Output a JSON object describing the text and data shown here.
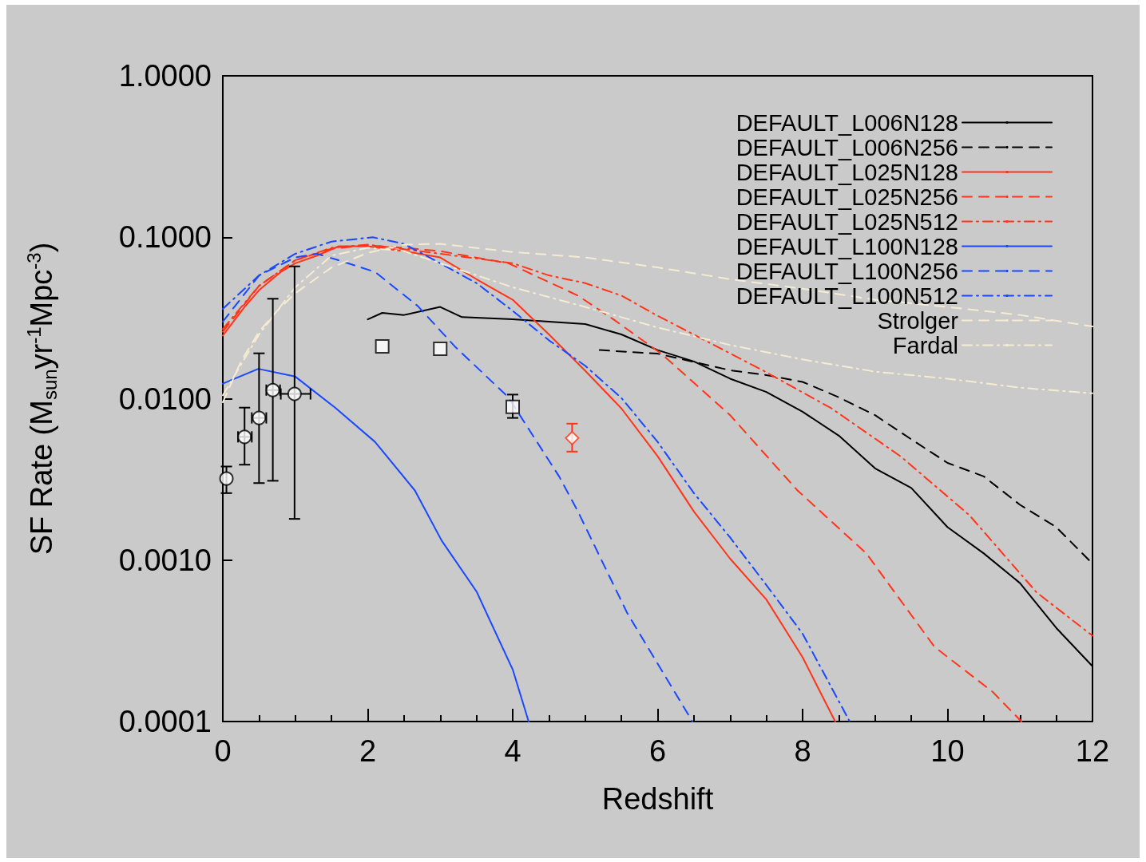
{
  "chart_data": {
    "type": "line",
    "xlabel": "Redshift",
    "ylabel": "SF Rate (M$_{sun}$yr$^{-1}$Mpc$^{-3}$)",
    "log": "y",
    "xlim": [
      0,
      12
    ],
    "ylim": [
      0.0001,
      1
    ],
    "xticks": [
      0,
      2,
      4,
      6,
      8,
      10,
      12
    ],
    "yticks": [
      {
        "value": 0.0001,
        "label": "0.0001"
      },
      {
        "value": 0.001,
        "label": "0.0010"
      },
      {
        "value": 0.01,
        "label": "0.0100"
      },
      {
        "value": 0.1,
        "label": "0.1000"
      },
      {
        "value": 1,
        "label": "1.0000"
      }
    ],
    "grid": false,
    "legend": "top right",
    "marker": "none",
    "series": [
      {
        "name": "DEFAULT_L006N128",
        "color": "#000000",
        "line_style": "solid",
        "x": [
          2.0,
          2.2,
          2.5,
          3.0,
          3.3,
          4.0,
          5.0,
          5.5,
          6.0,
          6.5,
          7.0,
          7.5,
          8.0,
          8.5,
          9.0,
          9.5,
          10.0,
          10.5,
          11.0,
          11.5,
          12.0
        ],
        "values": [
          0.031,
          0.034,
          0.033,
          0.037,
          0.032,
          0.031,
          0.029,
          0.025,
          0.02,
          0.017,
          0.0133,
          0.011,
          0.0083,
          0.0059,
          0.0037,
          0.0028,
          0.0016,
          0.0011,
          0.00072,
          0.00038,
          0.00022
        ]
      },
      {
        "name": "DEFAULT_L006N256",
        "color": "#000000",
        "line_style": "dashed",
        "x": [
          5.2,
          6.0,
          7.0,
          7.5,
          8.0,
          8.5,
          9.0,
          9.5,
          10.0,
          10.5,
          11.0,
          11.5,
          12.0
        ],
        "values": [
          0.02,
          0.019,
          0.015,
          0.014,
          0.0127,
          0.0102,
          0.0079,
          0.0056,
          0.004,
          0.0033,
          0.0022,
          0.0016,
          0.00095
        ]
      },
      {
        "name": "DEFAULT_L025N128",
        "color": "#ff3418",
        "line_style": "solid",
        "x": [
          0,
          0.3,
          0.5,
          0.8,
          1.0,
          1.3,
          1.6,
          2.0,
          2.5,
          3.0,
          3.5,
          4.0,
          4.5,
          5.0,
          5.5,
          6.0,
          6.5,
          7.0,
          7.5,
          8.0,
          8.45
        ],
        "values": [
          0.0246,
          0.037,
          0.047,
          0.061,
          0.069,
          0.077,
          0.088,
          0.088,
          0.082,
          0.075,
          0.055,
          0.041,
          0.025,
          0.0149,
          0.0087,
          0.0044,
          0.002,
          0.00102,
          0.00057,
          0.00025,
          0.0001
        ]
      },
      {
        "name": "DEFAULT_L025N256",
        "color": "#ff3418",
        "line_style": "dashed",
        "x": [
          0,
          0.5,
          1.0,
          1.5,
          2.0,
          2.5,
          3.0,
          3.94,
          4.9,
          5.39,
          6.05,
          7.0,
          7.93,
          8.88,
          9.82,
          10.62,
          11.02
        ],
        "values": [
          0.026,
          0.05,
          0.072,
          0.085,
          0.089,
          0.086,
          0.082,
          0.069,
          0.0435,
          0.031,
          0.019,
          0.0079,
          0.0027,
          0.0011,
          0.00029,
          0.000153,
          0.0001
        ]
      },
      {
        "name": "DEFAULT_L025N512",
        "color": "#ff3418",
        "line_style": "dashdot",
        "x": [
          0,
          0.5,
          1.0,
          1.5,
          2.0,
          3.0,
          4.0,
          4.5,
          5.0,
          5.5,
          6.0,
          7.46,
          8.4,
          9.35,
          10.3,
          11.23,
          12.0
        ],
        "values": [
          0.027,
          0.05,
          0.072,
          0.086,
          0.09,
          0.079,
          0.069,
          0.058,
          0.052,
          0.0435,
          0.0326,
          0.0149,
          0.0087,
          0.0044,
          0.0019,
          0.00063,
          0.00034
        ]
      },
      {
        "name": "DEFAULT_L100N128",
        "color": "#1848ff",
        "line_style": "solid",
        "x": [
          0,
          0.49,
          1.0,
          1.55,
          2.1,
          2.65,
          3.02,
          3.5,
          4.0,
          4.22
        ],
        "values": [
          0.0124,
          0.0153,
          0.0137,
          0.0088,
          0.0054,
          0.0027,
          0.00132,
          0.00064,
          0.00021,
          0.0001
        ]
      },
      {
        "name": "DEFAULT_L100N256",
        "color": "#1848ff",
        "line_style": "dashed",
        "x": [
          0,
          0.5,
          1.0,
          1.3,
          1.6,
          2.1,
          2.69,
          3.2,
          3.94,
          4.64,
          4.9,
          5.58,
          6.48
        ],
        "values": [
          0.03,
          0.058,
          0.075,
          0.079,
          0.072,
          0.061,
          0.0375,
          0.0211,
          0.0102,
          0.0033,
          0.002,
          0.00047,
          0.0001
        ]
      },
      {
        "name": "DEFAULT_L100N512",
        "color": "#1848ff",
        "line_style": "dashdot",
        "x": [
          0,
          0.5,
          1.0,
          1.5,
          2.07,
          2.5,
          3.0,
          3.5,
          4.0,
          4.5,
          5.0,
          5.5,
          6.0,
          6.5,
          7.0,
          7.5,
          8.0,
          8.65
        ],
        "values": [
          0.036,
          0.058,
          0.079,
          0.094,
          0.1,
          0.091,
          0.069,
          0.052,
          0.035,
          0.023,
          0.016,
          0.0101,
          0.0054,
          0.0026,
          0.00138,
          0.0007,
          0.00035,
          0.0001
        ]
      },
      {
        "name": "Strolger",
        "color": "#f5ecd2",
        "line_style": "dashed",
        "x": [
          0,
          0.25,
          0.5,
          0.75,
          1.0,
          1.5,
          2.0,
          2.5,
          3.0,
          4.0,
          5.0,
          6.0,
          7.0,
          8.0,
          9.0,
          10.0,
          11.0,
          12.0
        ],
        "values": [
          0.0095,
          0.017,
          0.026,
          0.035,
          0.045,
          0.065,
          0.08,
          0.09,
          0.091,
          0.081,
          0.075,
          0.065,
          0.055,
          0.048,
          0.041,
          0.037,
          0.033,
          0.028
        ]
      },
      {
        "name": "Fardal",
        "color": "#f5ecd2",
        "line_style": "dashdot",
        "x": [
          0,
          0.27,
          0.5,
          1.0,
          1.5,
          2.0,
          2.5,
          3.0,
          4.0,
          5.0,
          6.0,
          7.0,
          8.0,
          9.0,
          10.0,
          11.0,
          12.0
        ],
        "values": [
          0.0105,
          0.0168,
          0.025,
          0.049,
          0.077,
          0.086,
          0.082,
          0.069,
          0.049,
          0.037,
          0.0276,
          0.0215,
          0.0175,
          0.0147,
          0.0133,
          0.0117,
          0.0108
        ]
      },
      {
        "type": "scatter",
        "color": "#000000",
        "marker": "circle",
        "x": [
          0.05,
          0.3,
          0.5,
          0.69,
          0.99
        ],
        "values": [
          0.0032,
          0.0058,
          0.0076,
          0.0113,
          0.0107
        ],
        "errors": [
          [
            0.0026,
            0.0038
          ],
          [
            0.0039,
            0.0088
          ],
          [
            0.003,
            0.0191
          ],
          [
            0.0031,
            0.0416
          ],
          [
            0.0018,
            0.066
          ]
        ],
        "xerrors": [
          null,
          [
            0.21,
            0.4
          ],
          [
            0.4,
            0.6
          ],
          [
            0.6,
            0.79
          ],
          [
            0.8,
            1.21
          ]
        ]
      },
      {
        "type": "scatter",
        "color": "#000000",
        "marker": "square",
        "x": [
          2.2,
          3.0,
          4.0
        ],
        "values": [
          0.0211,
          0.0204,
          0.0089
        ],
        "errors": [
          null,
          null,
          [
            0.0076,
            0.0106
          ]
        ]
      },
      {
        "type": "scatter",
        "color": "#ff3418",
        "marker": "diamond",
        "x": [
          4.82
        ],
        "values": [
          0.0057
        ],
        "errors": [
          [
            0.0047,
            0.007
          ]
        ]
      }
    ]
  }
}
